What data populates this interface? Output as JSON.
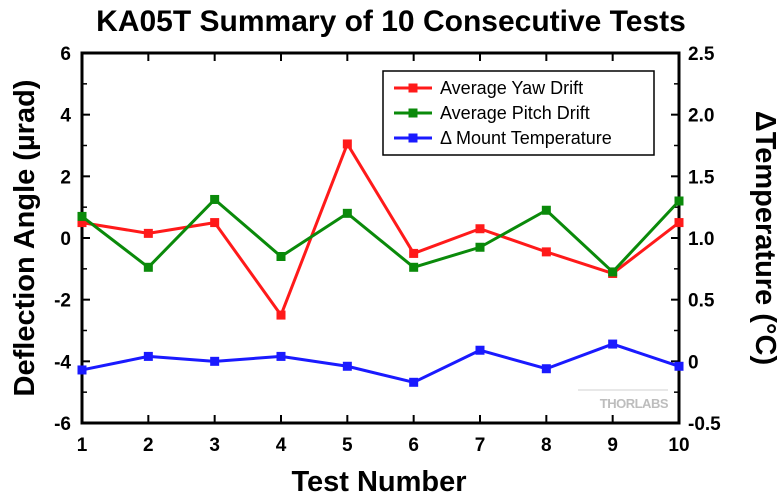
{
  "chart_data": {
    "type": "line",
    "title": "KA05T Summary of 10 Consecutive Tests",
    "xlabel": "Test Number",
    "ylabel": "Deflection Angle (µrad)",
    "y2label": "ΔTemperature (°C)",
    "x": [
      1,
      2,
      3,
      4,
      5,
      6,
      7,
      8,
      9,
      10
    ],
    "xlim": [
      1,
      10
    ],
    "ylim": [
      -6,
      6
    ],
    "y2lim": [
      -0.5,
      2.5
    ],
    "x_ticks": [
      "1",
      "2",
      "3",
      "4",
      "5",
      "6",
      "7",
      "8",
      "9",
      "10"
    ],
    "y_ticks": [
      "-6",
      "-4",
      "-2",
      "0",
      "2",
      "4",
      "6"
    ],
    "y2_ticks": [
      "-0.5",
      "0",
      "0.5",
      "1.0",
      "1.5",
      "2.0",
      "2.5"
    ],
    "grid": false,
    "legend_position": "top-right",
    "series": [
      {
        "name": "Average Yaw Drift",
        "axis": "left",
        "color": "#ff1a1a",
        "values": [
          0.5,
          0.15,
          0.5,
          -2.5,
          3.05,
          -0.5,
          0.3,
          -0.45,
          -1.15,
          0.5
        ]
      },
      {
        "name": "Average Pitch Drift",
        "axis": "left",
        "color": "#0a8a0a",
        "values": [
          0.7,
          -0.95,
          1.25,
          -0.6,
          0.8,
          -0.95,
          -0.3,
          0.9,
          -1.1,
          1.2
        ]
      },
      {
        "name": "Δ Mount Temperature",
        "axis": "right",
        "color": "#1a1aff",
        "values": [
          -0.07,
          0.04,
          0.0,
          0.04,
          -0.04,
          -0.17,
          0.09,
          -0.06,
          0.14,
          -0.04
        ]
      }
    ],
    "watermark": "THORLABS"
  }
}
